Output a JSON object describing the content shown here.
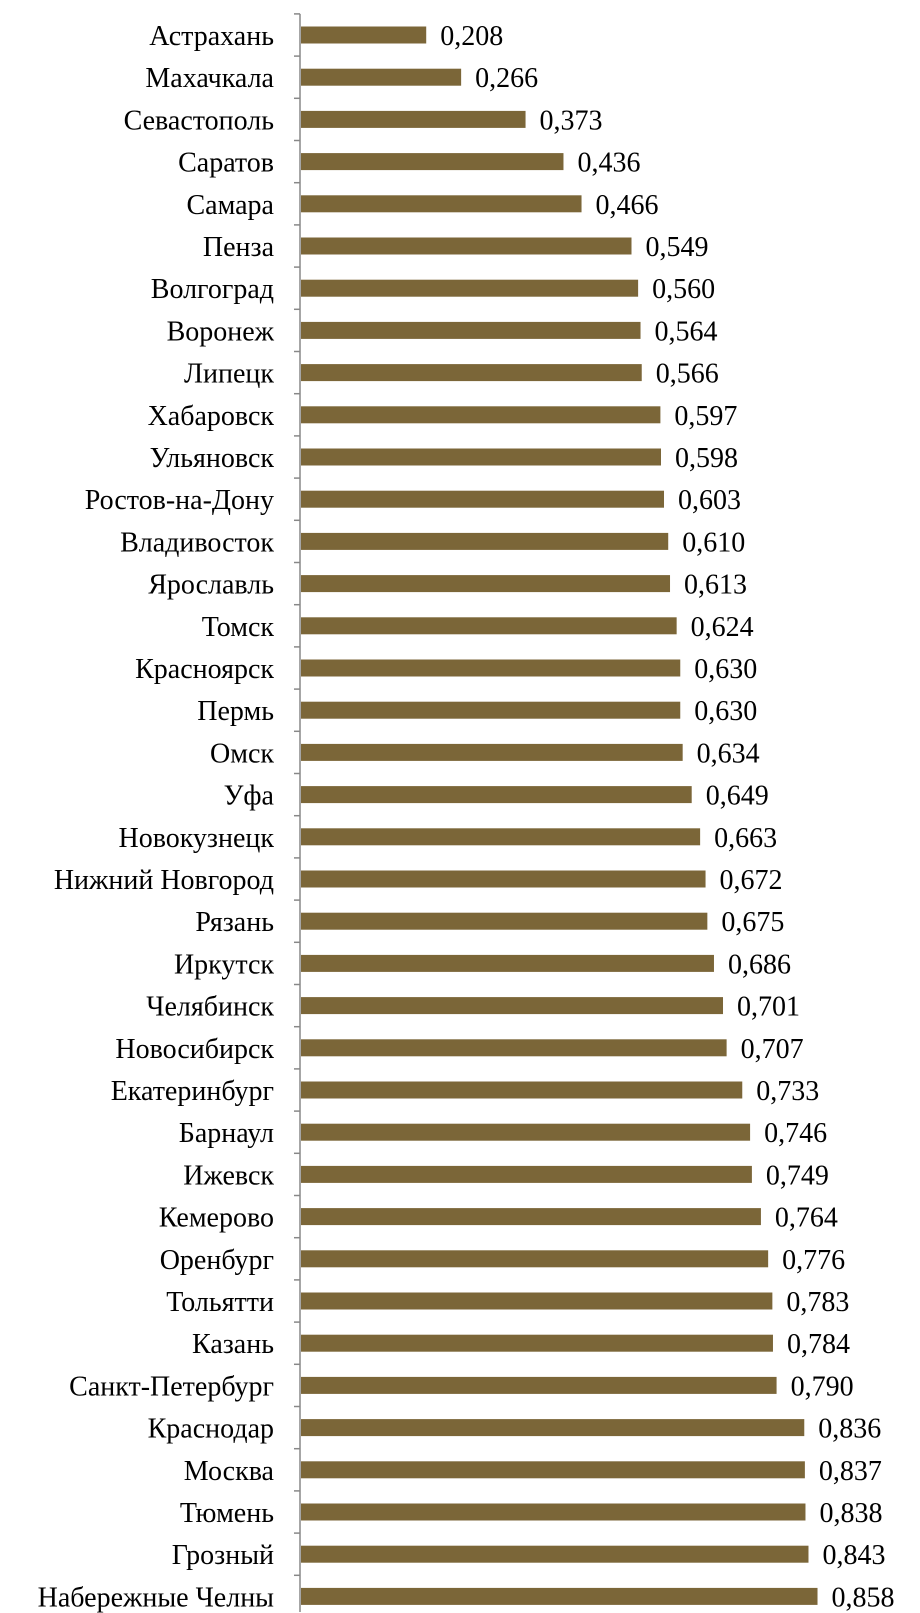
{
  "chart_data": {
    "type": "bar",
    "orientation": "horizontal",
    "title": "",
    "xlabel": "",
    "ylabel": "",
    "xlim": [
      0,
      1
    ],
    "grid": false,
    "legend": "none",
    "bar_color": "#7B6638",
    "axis_color": "#888888",
    "categories": [
      "Астрахань",
      "Махачкала",
      "Севастополь",
      "Саратов",
      "Самара",
      "Пенза",
      "Волгоград",
      "Воронеж",
      "Липецк",
      "Хабаровск",
      "Ульяновск",
      "Ростов-на-Дону",
      "Владивосток",
      "Ярославль",
      "Томск",
      "Красноярск",
      "Пермь",
      "Омск",
      "Уфа",
      "Новокузнецк",
      "Нижний Новгород",
      "Рязань",
      "Иркутск",
      "Челябинск",
      "Новосибирск",
      "Екатеринбург",
      "Барнаул",
      "Ижевск",
      "Кемерово",
      "Оренбург",
      "Тольятти",
      "Казань",
      "Санкт-Петербург",
      "Краснодар",
      "Москва",
      "Тюмень",
      "Грозный",
      "Набережные Челны"
    ],
    "values": [
      0.208,
      0.266,
      0.373,
      0.436,
      0.466,
      0.549,
      0.56,
      0.564,
      0.566,
      0.597,
      0.598,
      0.603,
      0.61,
      0.613,
      0.624,
      0.63,
      0.63,
      0.634,
      0.649,
      0.663,
      0.672,
      0.675,
      0.686,
      0.701,
      0.707,
      0.733,
      0.746,
      0.749,
      0.764,
      0.776,
      0.783,
      0.784,
      0.79,
      0.836,
      0.837,
      0.838,
      0.843,
      0.858
    ],
    "value_labels": [
      "0,208",
      "0,266",
      "0,373",
      "0,436",
      "0,466",
      "0,549",
      "0,560",
      "0,564",
      "0,566",
      "0,597",
      "0,598",
      "0,603",
      "0,610",
      "0,613",
      "0,624",
      "0,630",
      "0,630",
      "0,634",
      "0,649",
      "0,663",
      "0,672",
      "0,675",
      "0,686",
      "0,701",
      "0,707",
      "0,733",
      "0,746",
      "0,749",
      "0,764",
      "0,776",
      "0,783",
      "0,784",
      "0,790",
      "0,836",
      "0,837",
      "0,838",
      "0,843",
      "0,858"
    ]
  }
}
